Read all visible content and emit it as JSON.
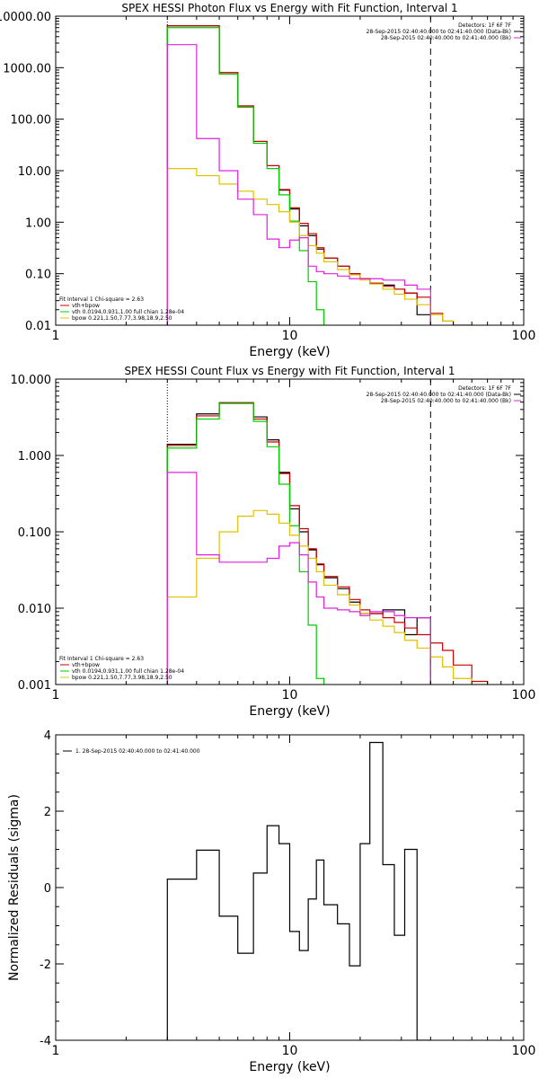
{
  "chart_data": [
    {
      "type": "line",
      "title": "SPEX HESSI Photon Flux vs Energy with Fit Function, Interval 1",
      "xlabel": "Energy (keV)",
      "ylabel": "",
      "x_scale": "log",
      "y_scale": "log",
      "xlim": [
        1,
        100
      ],
      "ylim": [
        0.01,
        10000
      ],
      "x_ticks": [
        1,
        10,
        100
      ],
      "x_tick_labels": [
        "1",
        "10",
        "100"
      ],
      "y_ticks": [
        0.01,
        0.1,
        1,
        10,
        100,
        1000,
        10000
      ],
      "y_tick_labels": [
        "0.01",
        "0.10",
        "1.00",
        "10.00",
        "100.00",
        "1000.00",
        "10000.00"
      ],
      "vlines": [
        {
          "x": 3,
          "style": "dotted"
        },
        {
          "x": 40,
          "style": "dashed"
        }
      ],
      "legend_tr": [
        {
          "text": "Detectors: 1F 6F 7F",
          "color": "#000000"
        },
        {
          "text": "28-Sep-2015 02:40:40.000 to 02:41:40.000 (Data-Bk)",
          "color": "#000000"
        },
        {
          "text": "28-Sep-2015 02:40:40.000 to 02:41:40.000 (Bk)",
          "color": "#e020e0"
        }
      ],
      "legend_bl": [
        {
          "text": "Fit Interval 1   Chi-square = 2.63",
          "color": ""
        },
        {
          "text": "vth+bpow",
          "color": "#cc0000"
        },
        {
          "text": "vth 0.0194,0.931,1.00  full chian 1.28e-04",
          "color": "#00cc00"
        },
        {
          "text": "bpow 0.221,1.50,7.77,3.98,18.9,2.50",
          "color": "#e0c000"
        }
      ],
      "edges": [
        3,
        4,
        5,
        6,
        7,
        8,
        9,
        10,
        11,
        12,
        13,
        14,
        16,
        18,
        20,
        22,
        25,
        28,
        31,
        35,
        40,
        45,
        50,
        60
      ],
      "series": [
        {
          "name": "",
          "color": "#000000",
          "values": [
            6500,
            6500,
            800,
            180,
            37,
            12.5,
            4.2,
            1.8,
            0.85,
            0.55,
            0.3,
            0.2,
            0.14,
            0.1,
            0.08,
            0.065,
            0.06,
            0.05,
            0.042,
            0.016
          ]
        },
        {
          "name": "vth+bpow",
          "color": "#cc0000",
          "values": [
            6500,
            6500,
            800,
            180,
            37,
            12.5,
            4.3,
            1.9,
            0.95,
            0.6,
            0.32,
            0.2,
            0.14,
            0.1,
            0.08,
            0.065,
            0.057,
            0.05,
            0.042,
            0.035,
            0.017,
            0.012,
            0.009
          ]
        },
        {
          "name": "vth",
          "color": "#00cc00",
          "values": [
            6000,
            6000,
            750,
            170,
            34,
            11,
            3.4,
            1.05,
            0.28,
            0.07,
            0.02
          ]
        },
        {
          "name": "bpow",
          "color": "#e0c000",
          "values": [
            11,
            8,
            5.5,
            4,
            2.8,
            2.2,
            1.6,
            1.0,
            0.55,
            0.35,
            0.25,
            0.17,
            0.12,
            0.095,
            0.075,
            0.063,
            0.05,
            0.04,
            0.032,
            0.025,
            0.016,
            0.012,
            0.009
          ]
        },
        {
          "name": "",
          "color": "#e020e0",
          "values": [
            2800,
            42,
            10,
            2.8,
            1.4,
            0.47,
            0.32,
            0.45,
            0.5,
            0.14,
            0.11,
            0.1,
            0.09,
            0.08,
            0.08,
            0.08,
            0.075,
            0.075,
            0.06,
            0.05
          ]
        }
      ]
    },
    {
      "type": "line",
      "title": "SPEX HESSI Count Flux vs Energy with Fit Function, Interval 1",
      "xlabel": "Energy (keV)",
      "ylabel": "",
      "x_scale": "log",
      "y_scale": "log",
      "xlim": [
        1,
        100
      ],
      "ylim": [
        0.001,
        10
      ],
      "x_ticks": [
        1,
        10,
        100
      ],
      "x_tick_labels": [
        "1",
        "10",
        "100"
      ],
      "y_ticks": [
        0.001,
        0.01,
        0.1,
        1,
        10
      ],
      "y_tick_labels": [
        "0.001",
        "0.010",
        "0.100",
        "1.000",
        "10.000"
      ],
      "vlines": [
        {
          "x": 3,
          "style": "dotted"
        },
        {
          "x": 40,
          "style": "dashed"
        }
      ],
      "legend_tr": [
        {
          "text": "Detectors: 1F 6F 7F",
          "color": "#000000"
        },
        {
          "text": "28-Sep-2015 02:40:40.000 to 02:41:40.000 (Data-Bk)",
          "color": "#000000"
        },
        {
          "text": "28-Sep-2015 02:40:40.000 to 02:41:40.000 (Bk)",
          "color": "#e020e0"
        }
      ],
      "legend_bl": [
        {
          "text": "Fit Interval 1   Chi-square = 2.63",
          "color": ""
        },
        {
          "text": "vth+bpow",
          "color": "#cc0000"
        },
        {
          "text": "vth 0.0194,0.931,1.00  full chian 1.28e-04",
          "color": "#00cc00"
        },
        {
          "text": "bpow 0.221,1.50,7.77,3.98,18.9,2.50",
          "color": "#e0c000"
        }
      ],
      "edges": [
        3,
        4,
        5,
        6,
        7,
        8,
        9,
        10,
        11,
        12,
        13,
        14,
        16,
        18,
        20,
        22,
        25,
        28,
        31,
        35,
        40,
        45,
        50,
        60,
        70
      ],
      "series": [
        {
          "name": "",
          "color": "#000000",
          "values": [
            1.4,
            3.5,
            4.9,
            4.9,
            3.2,
            1.6,
            0.6,
            0.2,
            0.1,
            0.058,
            0.037,
            0.025,
            0.018,
            0.012,
            0.0085,
            0.0085,
            0.0095,
            0.0095,
            0.0045,
            0.0075
          ]
        },
        {
          "name": "vth+bpow",
          "color": "#cc0000",
          "values": [
            1.35,
            3.3,
            4.9,
            4.9,
            3.0,
            1.5,
            0.58,
            0.22,
            0.11,
            0.06,
            0.038,
            0.026,
            0.019,
            0.013,
            0.0095,
            0.0085,
            0.0075,
            0.0065,
            0.0055,
            0.0045,
            0.0035,
            0.0028,
            0.0018,
            0.0011
          ]
        },
        {
          "name": "vth",
          "color": "#00cc00",
          "values": [
            1.25,
            3.0,
            4.8,
            4.8,
            2.8,
            1.3,
            0.42,
            0.12,
            0.03,
            0.006,
            0.0012
          ]
        },
        {
          "name": "bpow",
          "color": "#e0c000",
          "values": [
            0.014,
            0.045,
            0.1,
            0.16,
            0.19,
            0.17,
            0.13,
            0.09,
            0.065,
            0.045,
            0.03,
            0.02,
            0.015,
            0.011,
            0.0085,
            0.007,
            0.0058,
            0.0048,
            0.0038,
            0.003,
            0.0023,
            0.0017,
            0.0012,
            0.001
          ]
        },
        {
          "name": "",
          "color": "#e020e0",
          "values": [
            0.6,
            0.05,
            0.04,
            0.04,
            0.04,
            0.045,
            0.065,
            0.072,
            0.05,
            0.022,
            0.014,
            0.01,
            0.0095,
            0.009,
            0.008,
            0.009,
            0.009,
            0.008,
            0.0075,
            0.0075
          ]
        }
      ]
    },
    {
      "type": "line",
      "title": "",
      "xlabel": "Energy (keV)",
      "ylabel": "Normalized Residuals (sigma)",
      "x_scale": "log",
      "y_scale": "linear",
      "xlim": [
        1,
        100
      ],
      "ylim": [
        -4,
        4
      ],
      "x_ticks": [
        1,
        10,
        100
      ],
      "x_tick_labels": [
        "1",
        "10",
        "100"
      ],
      "y_ticks": [
        -4,
        -2,
        0,
        2,
        4
      ],
      "y_tick_labels": [
        "-4",
        "-2",
        "0",
        "2",
        "4"
      ],
      "vlines": [],
      "legend_tl": [
        {
          "text": "1. 28-Sep-2015 02:40:40.000 to 02:41:40.000",
          "color": "#000000"
        }
      ],
      "edges": [
        3,
        4,
        5,
        6,
        7,
        8,
        9,
        10,
        11,
        12,
        13,
        14,
        16,
        18,
        20,
        22,
        25,
        28,
        31,
        35,
        40
      ],
      "series": [
        {
          "name": "",
          "color": "#000000",
          "values": [
            0.22,
            0.98,
            -0.75,
            -1.72,
            0.38,
            1.62,
            1.15,
            -1.15,
            -1.65,
            -0.3,
            0.72,
            -0.45,
            -0.95,
            -2.05,
            1.15,
            3.8,
            0.6,
            -1.25,
            1.0,
            -4.0
          ]
        }
      ]
    }
  ]
}
